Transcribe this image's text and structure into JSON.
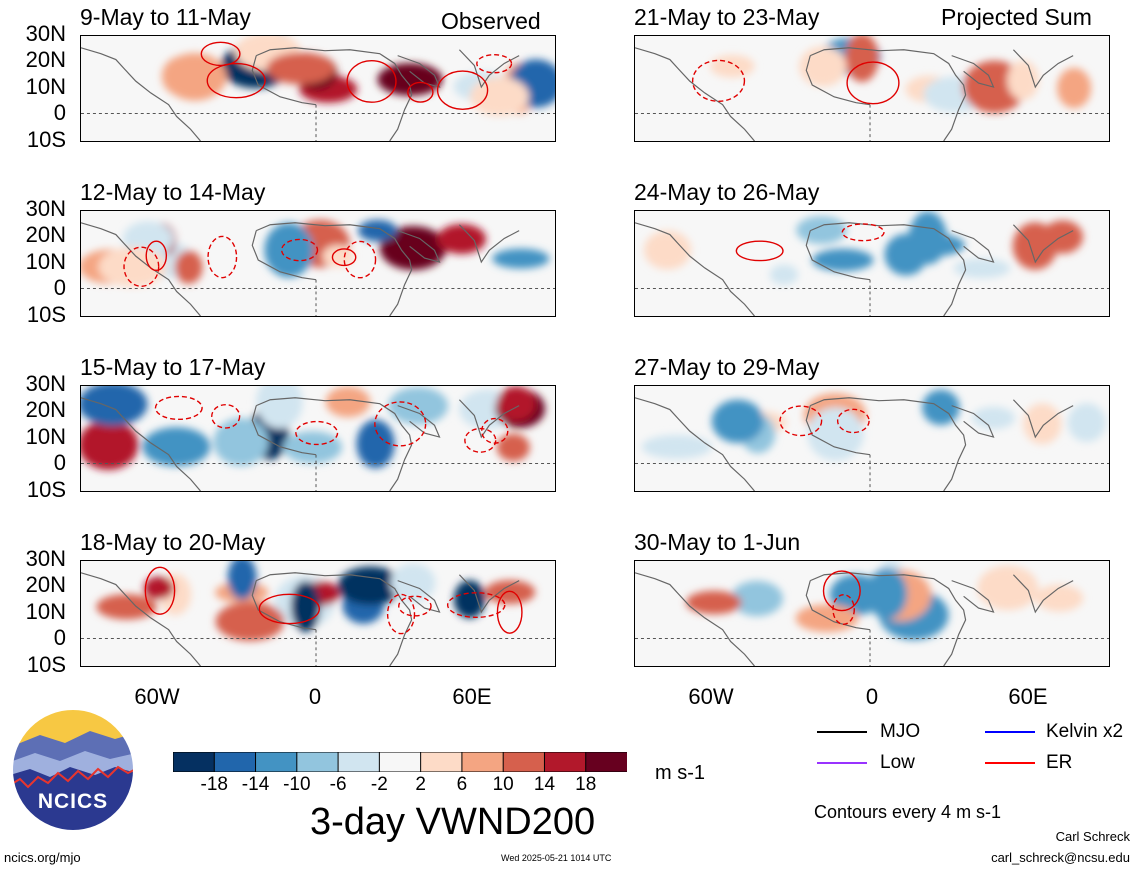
{
  "header": {
    "observed_label": "Observed",
    "projected_label": "Projected Sum"
  },
  "panels": [
    {
      "title": "9-May to 11-May"
    },
    {
      "title": "12-May to 14-May"
    },
    {
      "title": "15-May to 17-May"
    },
    {
      "title": "18-May to 20-May"
    },
    {
      "title": "21-May to 23-May"
    },
    {
      "title": "24-May to 26-May"
    },
    {
      "title": "27-May to 29-May"
    },
    {
      "title": "30-May to 1-Jun"
    }
  ],
  "axes": {
    "lat_labels": [
      "30N",
      "20N",
      "10N",
      "0",
      "10S"
    ],
    "lon_labels": [
      "60W",
      "0",
      "60E"
    ]
  },
  "colorbar": {
    "ticks": [
      "-18",
      "-14",
      "-10",
      "-6",
      "-2",
      "2",
      "6",
      "10",
      "14",
      "18"
    ],
    "colors": [
      "#053061",
      "#2166ac",
      "#4393c3",
      "#92c5de",
      "#d1e5f0",
      "#f7f7f7",
      "#fddbc7",
      "#f4a582",
      "#d6604d",
      "#b2182b",
      "#67001f"
    ],
    "units": "m s-1",
    "title": "3-day VWND200"
  },
  "legend": {
    "items": [
      {
        "label": "MJO",
        "color": "#000000"
      },
      {
        "label": "Kelvin x2",
        "color": "#0000ff"
      },
      {
        "label": "Low",
        "color": "#9933ff"
      },
      {
        "label": "ER",
        "color": "#ff0000"
      }
    ],
    "contour_note": "Contours every 4 m s-1"
  },
  "logo": {
    "text": "NCICS"
  },
  "footer": {
    "url": "ncics.org/mjo",
    "timestamp": "Wed 2025-05-21 1014 UTC",
    "author": "Carl Schreck",
    "email": "carl_schreck@ncsu.edu"
  }
}
